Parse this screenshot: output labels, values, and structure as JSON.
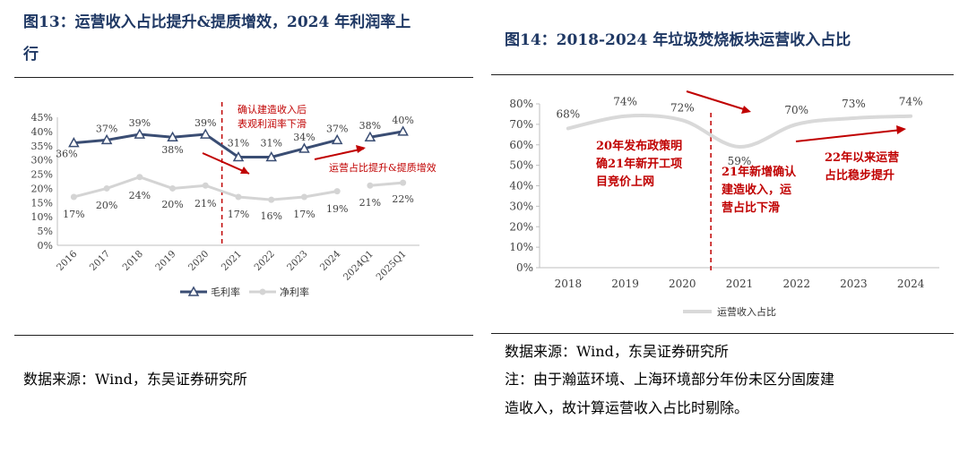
{
  "left": {
    "title_line1": "图13：运营收入占比提升&提质增效，2024 年利润率上",
    "title_line2": "行",
    "source": "数据来源：Wind，东吴证券研究所",
    "chart_data": {
      "type": "line",
      "categories": [
        "2016",
        "2017",
        "2018",
        "2019",
        "2020",
        "2021",
        "2022",
        "2023",
        "2024",
        "2024Q1",
        "2025Q1"
      ],
      "series": [
        {
          "name": "毛利率",
          "values": [
            36,
            37,
            39,
            38,
            39,
            31,
            31,
            34,
            37,
            38,
            40
          ],
          "labels": [
            "36%",
            "37%",
            "39%",
            "38%",
            "39%",
            "31%",
            "31%",
            "34%",
            "37%",
            "38%",
            "40%"
          ],
          "color": "#3a4d73"
        },
        {
          "name": "净利率",
          "values": [
            17,
            20,
            24,
            20,
            21,
            17,
            16,
            17,
            19,
            21,
            22
          ],
          "labels": [
            "17%",
            "20%",
            "24%",
            "20%",
            "21%",
            "17%",
            "16%",
            "17%",
            "19%",
            "21%",
            "22%"
          ],
          "color": "#d4d4d4"
        }
      ],
      "yticks": [
        "0%",
        "5%",
        "10%",
        "15%",
        "20%",
        "25%",
        "30%",
        "35%",
        "40%",
        "45%"
      ],
      "ylim": [
        0,
        45
      ],
      "annotations": {
        "a1_line1": "确认建造收入后",
        "a1_line2": "表观利润率下滑",
        "a2": "运营占比提升&提质增效"
      },
      "annotation_color": "#c00000"
    }
  },
  "right": {
    "title": "图14：2018-2024 年垃圾焚烧板块运营收入占比",
    "source": "数据来源：Wind，东吴证券研究所",
    "note_line1": "注：由于瀚蓝环境、上海环境部分年份未区分固废建",
    "note_line2": "造收入，故计算运营收入占比时剔除。",
    "chart_data": {
      "type": "line",
      "categories": [
        "2018",
        "2019",
        "2020",
        "2021",
        "2022",
        "2023",
        "2024"
      ],
      "series": [
        {
          "name": "运营收入占比",
          "values": [
            68,
            74,
            72,
            59,
            70,
            73,
            74
          ],
          "labels": [
            "68%",
            "74%",
            "72%",
            "59%",
            "70%",
            "73%",
            "74%"
          ],
          "color": "#d9d9d9"
        }
      ],
      "yticks": [
        "0%",
        "10%",
        "20%",
        "30%",
        "40%",
        "50%",
        "60%",
        "70%",
        "80%"
      ],
      "ylim": [
        0,
        80
      ],
      "annotations": {
        "b1_line1": "20年发布政策明",
        "b1_line2": "确21年新开工项",
        "b1_line3": "目竞价上网",
        "b2_line1": "21年新增确认",
        "b2_line2": "建造收入，运",
        "b2_line3": "营占比下滑",
        "b3_line1": "22年以来运营",
        "b3_line2": "占比稳步提升"
      },
      "annotation_color": "#c00000"
    }
  }
}
